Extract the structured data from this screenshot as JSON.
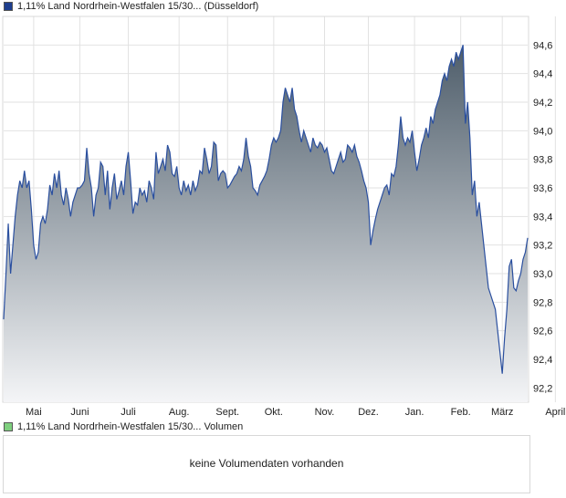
{
  "price_legend": {
    "label": "1,11% Land Nordrhein-Westfalen 15/30... (Düsseldorf)"
  },
  "volume_legend": {
    "label": "1,11% Land Nordrhein-Westfalen 15/30... Volumen"
  },
  "volume_panel": {
    "message": "keine Volumendaten vorhanden"
  },
  "colors": {
    "line": "#2a4f9f",
    "fill_top": "#4e5d6a",
    "fill_bottom": "#f4f5f7",
    "grid": "#e2e2e2",
    "axis": "#cccccc"
  },
  "chart_data": {
    "type": "area",
    "title": "1,11% Land Nordrhein-Westfalen 15/30... (Düsseldorf)",
    "xlabel": "",
    "ylabel": "",
    "y_axis_side": "right",
    "ylim": [
      92.1,
      94.8
    ],
    "y_ticks": [
      "92,2",
      "92,4",
      "92,6",
      "92,8",
      "93,0",
      "93,2",
      "93,4",
      "93,6",
      "93,8",
      "94,0",
      "94,2",
      "94,4",
      "94,6"
    ],
    "x_ticks": [
      {
        "label": "Mai",
        "index": 13
      },
      {
        "label": "Juni",
        "index": 33
      },
      {
        "label": "Juli",
        "index": 54
      },
      {
        "label": "Aug.",
        "index": 76
      },
      {
        "label": "Sept.",
        "index": 97
      },
      {
        "label": "Okt.",
        "index": 117
      },
      {
        "label": "Nov.",
        "index": 139
      },
      {
        "label": "Dez.",
        "index": 158
      },
      {
        "label": "Jan.",
        "index": 178
      },
      {
        "label": "Feb.",
        "index": 198
      },
      {
        "label": "März",
        "index": 216
      },
      {
        "label": "April",
        "index": 239
      }
    ],
    "grid": true,
    "series": [
      {
        "name": "",
        "values": [
          92.68,
          93.0,
          93.35,
          93.0,
          93.2,
          93.4,
          93.55,
          93.65,
          93.6,
          93.72,
          93.6,
          93.65,
          93.45,
          93.2,
          93.1,
          93.15,
          93.35,
          93.4,
          93.35,
          93.45,
          93.62,
          93.55,
          93.7,
          93.6,
          93.72,
          93.55,
          93.48,
          93.6,
          93.52,
          93.4,
          93.5,
          93.55,
          93.6,
          93.6,
          93.62,
          93.65,
          93.88,
          93.7,
          93.6,
          93.4,
          93.55,
          93.6,
          93.78,
          93.75,
          93.55,
          93.72,
          93.45,
          93.6,
          93.7,
          93.52,
          93.58,
          93.65,
          93.55,
          93.75,
          93.85,
          93.65,
          93.42,
          93.5,
          93.48,
          93.6,
          93.55,
          93.58,
          93.5,
          93.65,
          93.6,
          93.52,
          93.85,
          93.7,
          93.75,
          93.8,
          93.72,
          93.9,
          93.85,
          93.7,
          93.68,
          93.75,
          93.6,
          93.55,
          93.65,
          93.58,
          93.62,
          93.55,
          93.65,
          93.58,
          93.62,
          93.72,
          93.7,
          93.88,
          93.8,
          93.7,
          93.75,
          93.92,
          93.9,
          93.65,
          93.7,
          93.72,
          93.7,
          93.6,
          93.62,
          93.65,
          93.68,
          93.7,
          93.75,
          93.72,
          93.8,
          93.95,
          93.82,
          93.75,
          93.6,
          93.58,
          93.55,
          93.62,
          93.65,
          93.68,
          93.72,
          93.8,
          93.9,
          93.95,
          93.92,
          93.95,
          94.0,
          94.2,
          94.3,
          94.25,
          94.2,
          94.3,
          94.15,
          94.1,
          94.0,
          93.92,
          94.0,
          93.95,
          93.9,
          93.85,
          93.95,
          93.9,
          93.88,
          93.92,
          93.9,
          93.85,
          93.88,
          93.8,
          93.72,
          93.7,
          93.75,
          93.8,
          93.85,
          93.78,
          93.8,
          93.9,
          93.88,
          93.85,
          93.9,
          93.82,
          93.78,
          93.72,
          93.65,
          93.6,
          93.5,
          93.2,
          93.3,
          93.38,
          93.45,
          93.5,
          93.55,
          93.6,
          93.62,
          93.55,
          93.7,
          93.68,
          93.75,
          93.9,
          94.1,
          93.95,
          93.9,
          93.95,
          93.92,
          94.0,
          93.85,
          93.72,
          93.8,
          93.9,
          93.95,
          94.02,
          93.95,
          94.1,
          94.05,
          94.15,
          94.2,
          94.25,
          94.35,
          94.4,
          94.35,
          94.45,
          94.5,
          94.45,
          94.55,
          94.5,
          94.55,
          94.6,
          94.05,
          94.2,
          93.95,
          93.55,
          93.65,
          93.4,
          93.5,
          93.35,
          93.2,
          93.05,
          92.9,
          92.85,
          92.8,
          92.75,
          92.6,
          92.45,
          92.3,
          92.55,
          92.75,
          93.05,
          93.1,
          92.9,
          92.88,
          92.95,
          93.0,
          93.1,
          93.15,
          93.25
        ]
      }
    ]
  }
}
